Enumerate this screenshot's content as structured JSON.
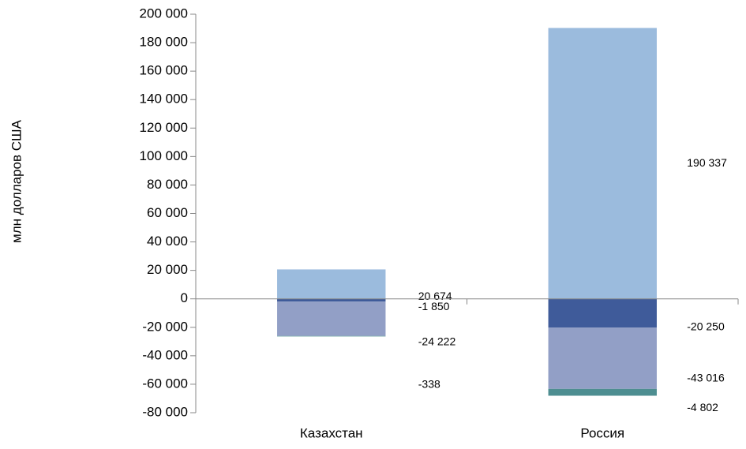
{
  "chart_data": {
    "type": "stacked_bar",
    "y_label": "млн долларов США",
    "categories": [
      "Казахстан",
      "Россия"
    ],
    "series": [
      {
        "color": "#9bbbdd",
        "values": [
          20674,
          190337
        ],
        "value_labels": [
          "20 674",
          "190 337"
        ]
      },
      {
        "color": "#3f5b9a",
        "values": [
          -1850,
          -20250
        ],
        "value_labels": [
          "-1 850",
          "-20 250"
        ]
      },
      {
        "color": "#929fc6",
        "values": [
          -24222,
          -43016
        ],
        "value_labels": [
          "-24 222",
          "-43 016"
        ]
      },
      {
        "color": "#4e8e91",
        "values": [
          -338,
          -4802
        ],
        "value_labels": [
          "-338",
          "-4 802"
        ]
      }
    ],
    "ylim": [
      -80000,
      200000
    ],
    "yticks": [
      {
        "value": -80000,
        "label": "-80 000"
      },
      {
        "value": -60000,
        "label": "-60 000"
      },
      {
        "value": -40000,
        "label": "-40 000"
      },
      {
        "value": -20000,
        "label": "-20 000"
      },
      0,
      {
        "value": 20000,
        "label": "20 000"
      },
      {
        "value": 40000,
        "label": "40 000"
      },
      {
        "value": 60000,
        "label": "60 000"
      },
      {
        "value": 80000,
        "label": "80 000"
      },
      {
        "value": 100000,
        "label": "100 000"
      },
      {
        "value": 120000,
        "label": "120 000"
      },
      {
        "value": 140000,
        "label": "140 000"
      },
      {
        "value": 160000,
        "label": "160 000"
      },
      {
        "value": 180000,
        "label": "180 000"
      },
      {
        "value": 200000,
        "label": "200 000"
      }
    ]
  }
}
